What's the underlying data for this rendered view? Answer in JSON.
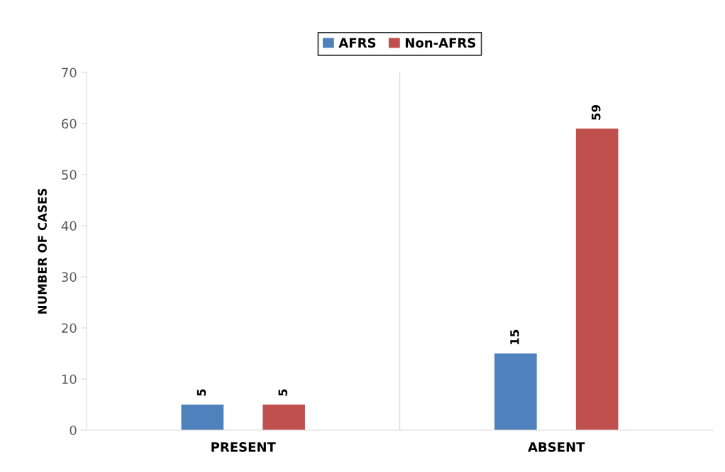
{
  "chart_data": {
    "type": "bar",
    "ylabel": "NUMBER OF CASES",
    "categories": [
      "PRESENT",
      "ABSENT"
    ],
    "series": [
      {
        "name": "AFRS",
        "color": "#4f81bd",
        "values": [
          5,
          15
        ]
      },
      {
        "name": "Non-AFRS",
        "color": "#c0504d",
        "values": [
          5,
          59
        ]
      }
    ],
    "ylim": [
      0,
      70
    ],
    "yticks": [
      0,
      10,
      20,
      30,
      40,
      50,
      60,
      70
    ],
    "grid": "x",
    "legend": "top",
    "data_labels": true
  }
}
